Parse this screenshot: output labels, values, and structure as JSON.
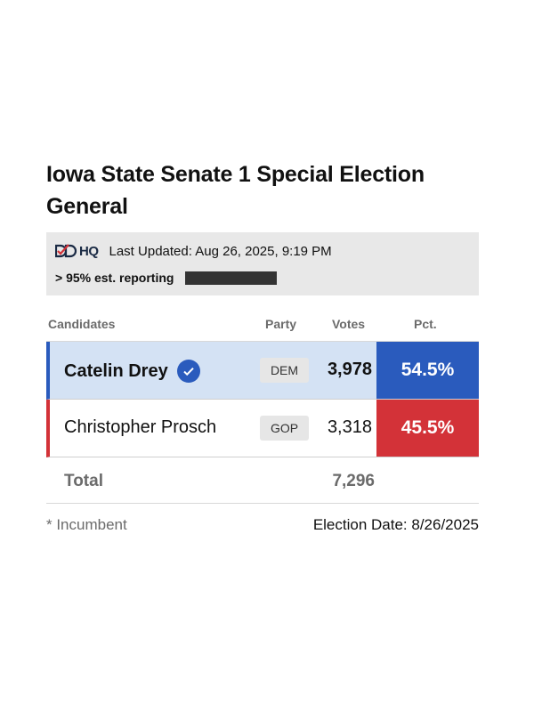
{
  "race": {
    "title": "Iowa State Senate 1 Special Election General"
  },
  "info": {
    "logo_text": "HQ",
    "last_updated": "Last Updated: Aug 26, 2025, 9:19 PM",
    "reporting": "> 95% est. reporting"
  },
  "table": {
    "headers": {
      "candidates": "Candidates",
      "party": "Party",
      "votes": "Votes",
      "pct": "Pct."
    },
    "rows": [
      {
        "name": "Catelin Drey",
        "party": "DEM",
        "votes": "3,978",
        "pct": "54.5%",
        "winner": true
      },
      {
        "name": "Christopher Prosch",
        "party": "GOP",
        "votes": "3,318",
        "pct": "45.5%",
        "winner": false
      }
    ],
    "total_label": "Total",
    "total_votes": "7,296"
  },
  "footer": {
    "incumbent_note": "* Incumbent",
    "election_date": "Election Date: 8/26/2025"
  },
  "colors": {
    "dem": "#2a5bbd",
    "gop": "#d33238",
    "dem_row_bg": "#d4e2f4"
  },
  "icons": {
    "winner": "check-circle-icon",
    "logo": "ddhq-logo-icon"
  }
}
